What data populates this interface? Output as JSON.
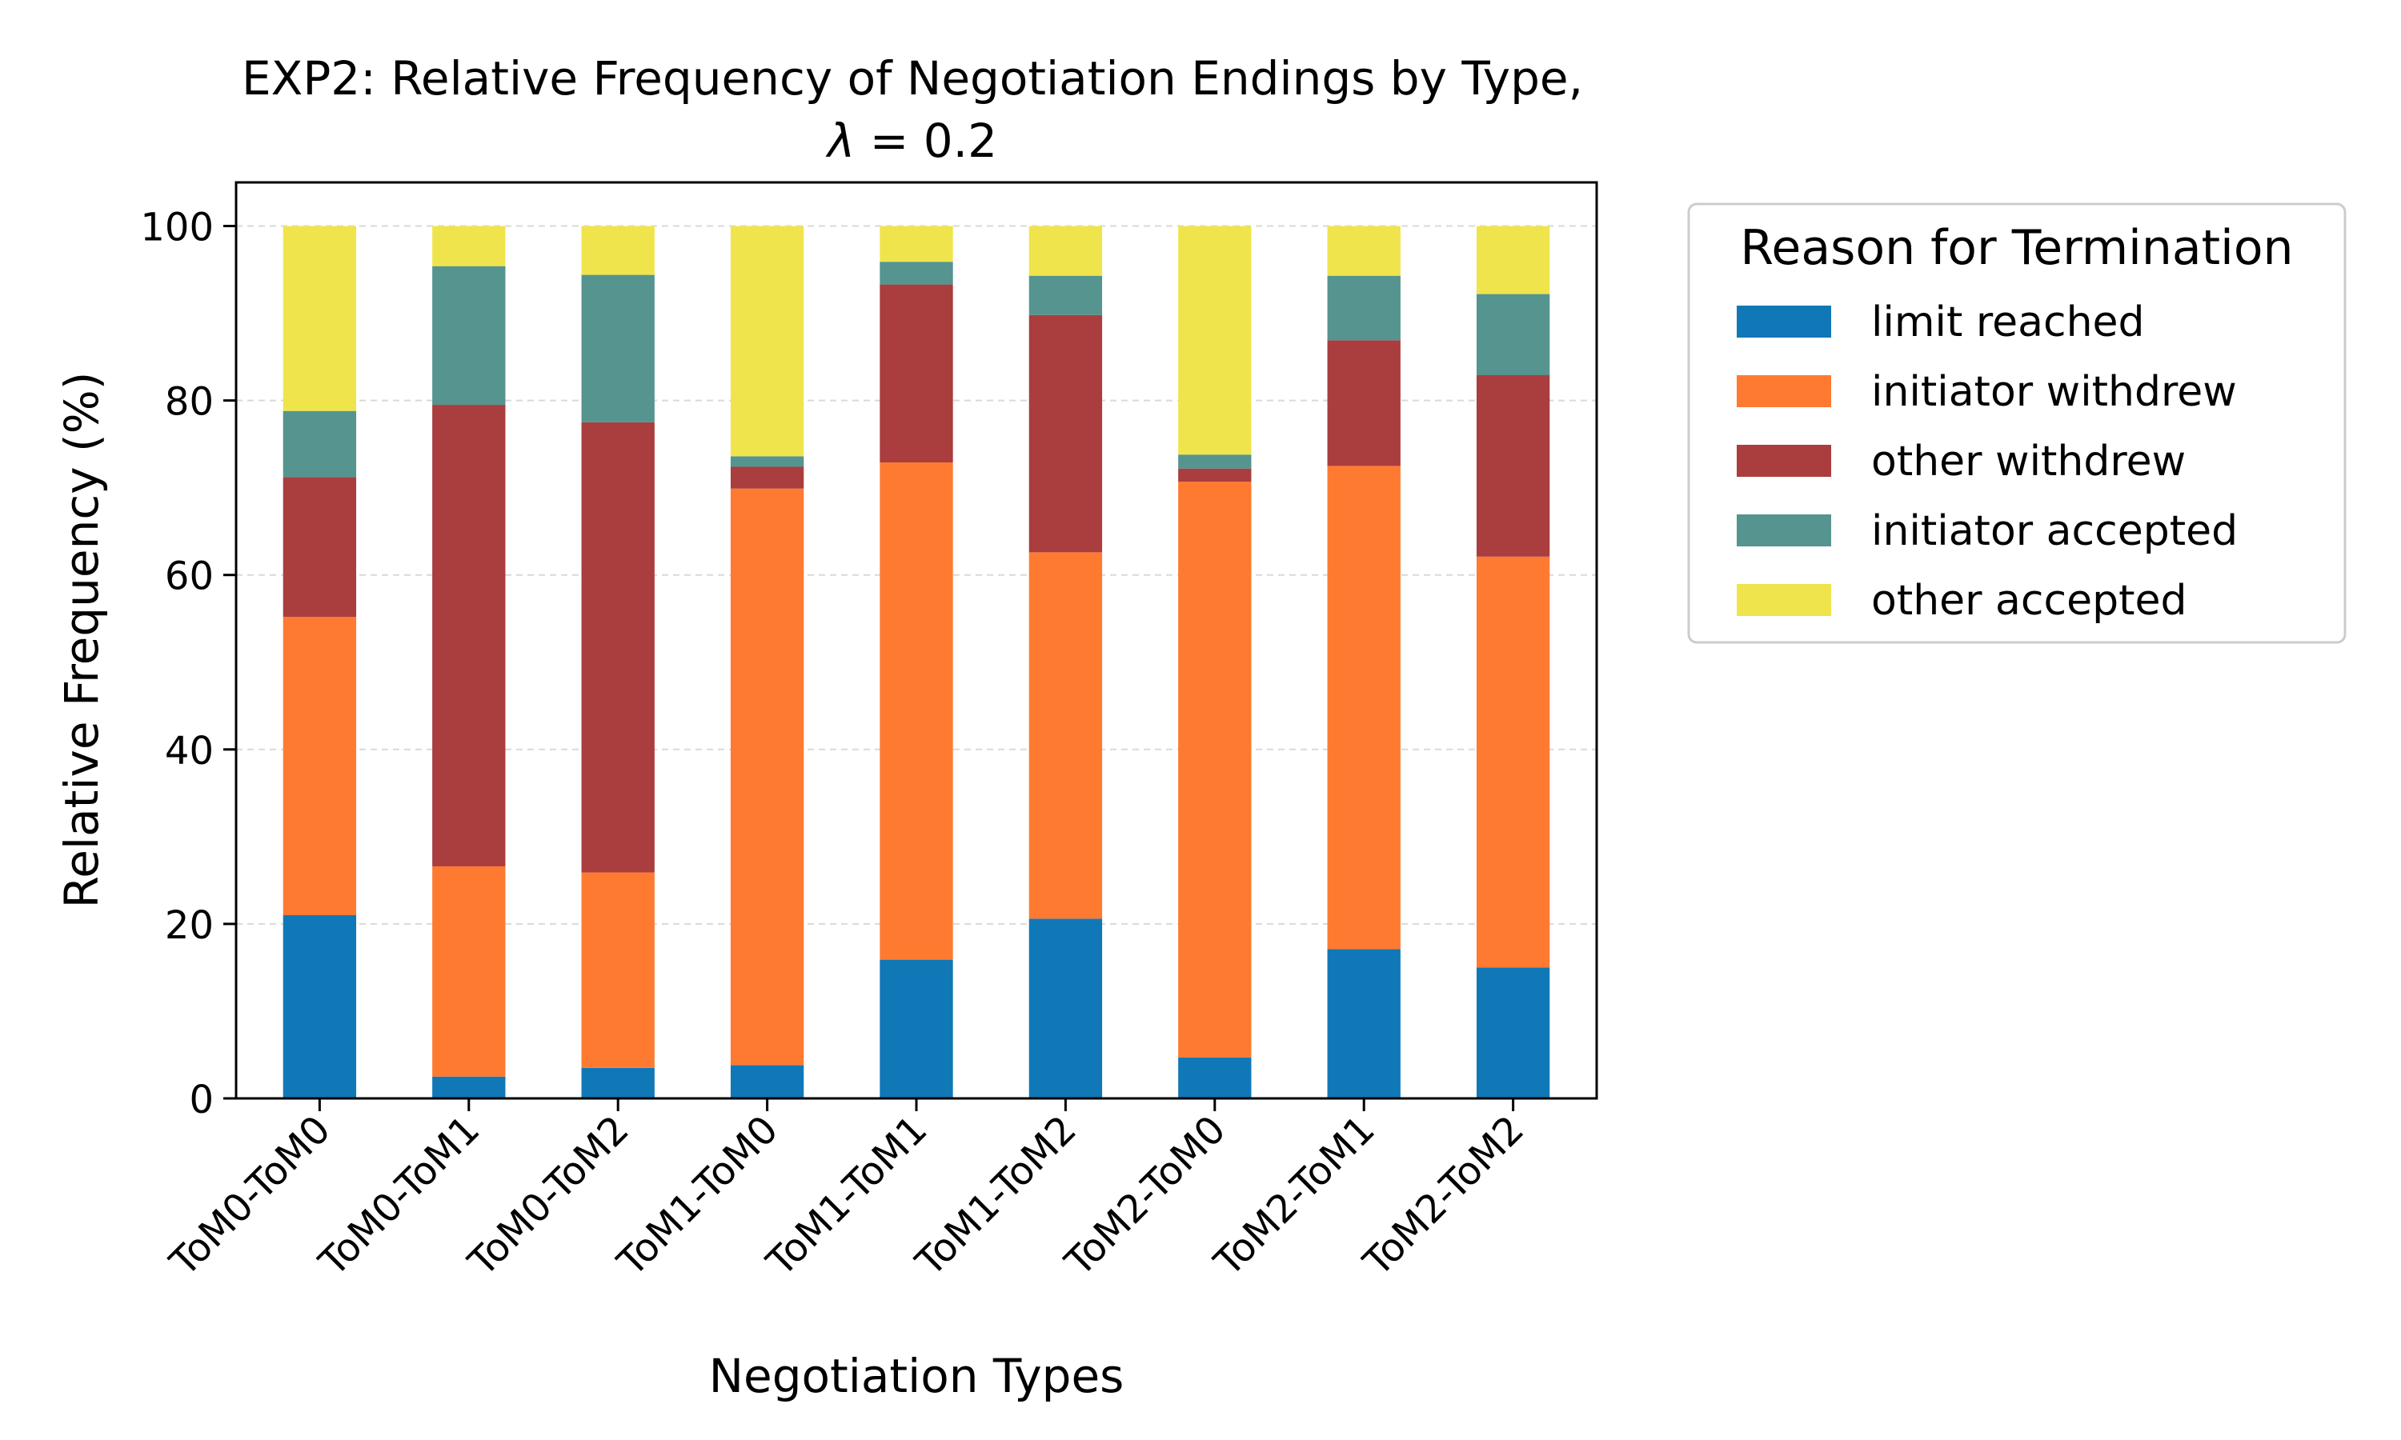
{
  "chart_data": {
    "type": "bar",
    "stacked": true,
    "title_line1": "EXP2: Relative Frequency of Negotiation Endings by Type,",
    "title_lambda": "λ",
    "title_line2_rest": " = 0.2",
    "xlabel": "Negotiation Types",
    "ylabel": "Relative Frequency (%)",
    "ylim": [
      0,
      105
    ],
    "yticks": [
      0,
      20,
      40,
      60,
      80,
      100
    ],
    "grid": "horizontal dashed",
    "legend": {
      "title": "Reason for Termination",
      "placement": "outside-right-top"
    },
    "categories": [
      "ToM0-ToM0",
      "ToM0-ToM1",
      "ToM0-ToM2",
      "ToM1-ToM0",
      "ToM1-ToM1",
      "ToM1-ToM2",
      "ToM2-ToM0",
      "ToM2-ToM1",
      "ToM2-ToM2"
    ],
    "series": [
      {
        "name": "limit reached",
        "color": "#1178b8",
        "values": [
          21.0,
          2.5,
          3.5,
          3.8,
          15.9,
          20.6,
          4.7,
          17.1,
          15.0
        ]
      },
      {
        "name": "initiator withdrew",
        "color": "#fe7a31",
        "values": [
          34.2,
          24.1,
          22.4,
          66.1,
          57.0,
          42.0,
          66.0,
          55.4,
          47.1
        ]
      },
      {
        "name": "other withdrew",
        "color": "#aa3d3e",
        "values": [
          16.0,
          52.9,
          51.6,
          2.5,
          20.4,
          27.2,
          1.5,
          14.4,
          20.8
        ]
      },
      {
        "name": "initiator accepted",
        "color": "#55948f",
        "values": [
          7.6,
          15.9,
          16.9,
          1.2,
          2.6,
          4.5,
          1.6,
          7.4,
          9.3
        ]
      },
      {
        "name": "other accepted",
        "color": "#f0e44d",
        "values": [
          21.2,
          4.6,
          5.6,
          26.4,
          4.1,
          5.7,
          26.2,
          5.7,
          7.8
        ]
      }
    ]
  }
}
